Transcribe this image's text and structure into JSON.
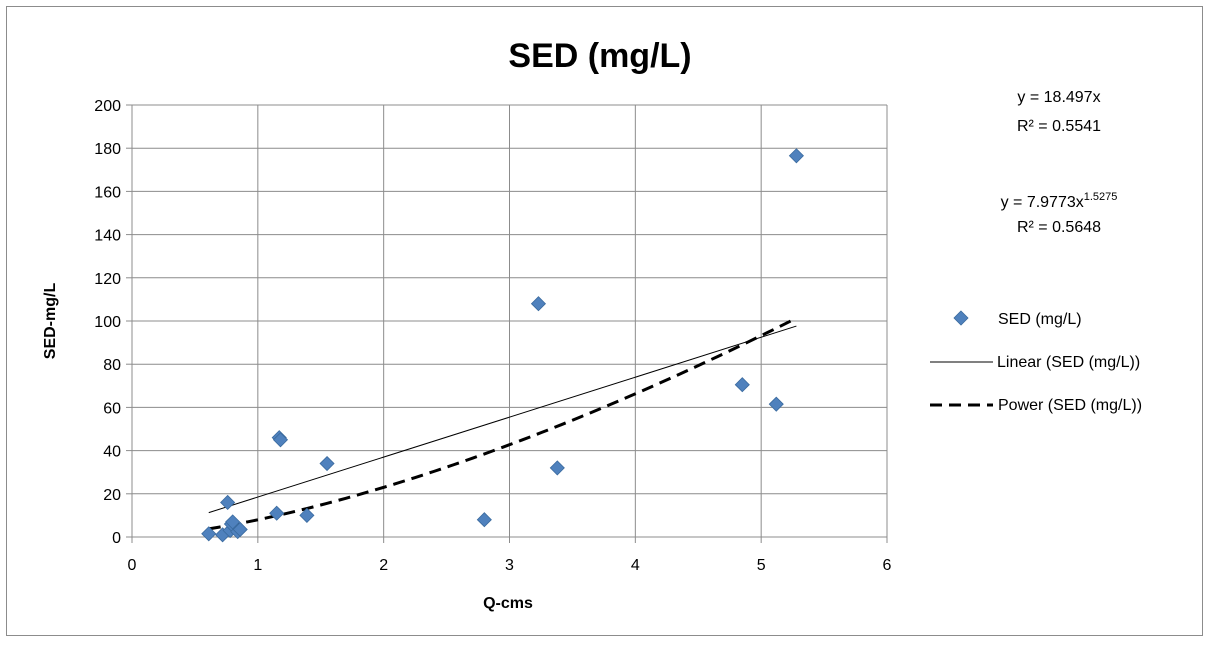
{
  "chart_data": {
    "type": "scatter",
    "title": "SED (mg/L)",
    "xlabel": "Q-cms",
    "ylabel": "SED-mg/L",
    "xlim": [
      0,
      6
    ],
    "ylim": [
      0,
      200
    ],
    "x_ticks": [
      "0",
      "1",
      "2",
      "3",
      "4",
      "5",
      "6"
    ],
    "y_ticks": [
      "0",
      "20",
      "40",
      "60",
      "80",
      "100",
      "120",
      "140",
      "160",
      "180",
      "200"
    ],
    "grid": true,
    "legend_position": "right",
    "series": [
      {
        "name": "SED (mg/L)",
        "color": "#4f81bd",
        "marker": "diamond",
        "x": [
          0.61,
          0.72,
          0.76,
          0.78,
          0.79,
          0.8,
          0.84,
          0.86,
          1.15,
          1.17,
          1.18,
          1.39,
          1.55,
          2.8,
          3.23,
          3.38,
          4.85,
          5.12,
          5.28
        ],
        "y": [
          1.5,
          1.0,
          16.0,
          3.0,
          6.0,
          7.0,
          2.5,
          3.5,
          11.0,
          46.0,
          45.0,
          10.0,
          34.0,
          8.0,
          108.0,
          32.0,
          70.5,
          61.5,
          176.5
        ]
      }
    ],
    "trendlines": [
      {
        "name": "Linear (SED (mg/L))",
        "kind": "linear",
        "slope": 18.497,
        "x_range": [
          0.61,
          5.28
        ],
        "style": "solid",
        "color": "#000000"
      },
      {
        "name": "Power (SED (mg/L))",
        "kind": "power",
        "coefficient": 7.9773,
        "exponent": 1.5275,
        "x_range": [
          0.61,
          5.28
        ],
        "style": "dashed",
        "color": "#000000"
      }
    ],
    "annotations": {
      "linear_equation": "y = 18.497x",
      "linear_r2": "R² = 0.5541",
      "power_equation_base": "y = 7.9773x",
      "power_equation_exponent": "1.5275",
      "power_r2": "R² = 0.5648"
    }
  }
}
